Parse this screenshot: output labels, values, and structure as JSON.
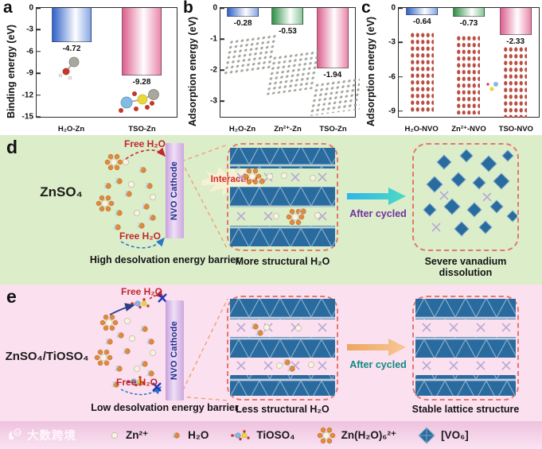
{
  "figure": {
    "panels": {
      "a": {
        "label": "a"
      },
      "b": {
        "label": "b"
      },
      "c": {
        "label": "c"
      },
      "d": {
        "label": "d",
        "electrolyte": "ZnSO₄",
        "free_h2o_top": "Free H₂O",
        "free_h2o_bottom": "Free H₂O",
        "cathode": "NVO Cathode",
        "interaction": "Interaction",
        "after_cycled": "After cycled",
        "caption_barrier": "High desolvation energy barrier",
        "caption_structural": "More structural H₂O",
        "caption_result": "Severe vanadium dissolution"
      },
      "e": {
        "label": "e",
        "electrolyte": "ZnSO₄/TiOSO₄",
        "free_h2o_top": "Free H₂O",
        "free_h2o_bottom": "Free H₂O",
        "cathode": "NVO Cathode",
        "after_cycled": "After cycled",
        "caption_barrier": "Low desolvation energy barrier",
        "caption_structural": "Less structural H₂O",
        "caption_result": "Stable lattice structure"
      }
    },
    "legend": {
      "watermark": "大数跨境",
      "items": [
        {
          "icon": "zn-ion-icon",
          "label": "Zn²⁺"
        },
        {
          "icon": "h2o-icon",
          "label": "H₂O"
        },
        {
          "icon": "tioso4-icon",
          "label": "TiOSO₄"
        },
        {
          "icon": "zn-h2o6-icon",
          "label": "Zn(H₂O)₆²⁺"
        },
        {
          "icon": "vo6-icon",
          "label": "[VO₆]"
        }
      ]
    },
    "colors": {
      "panel_d_bg": "#dcedca",
      "panel_e_bg": "#fbe0f0",
      "bar_blue": "#2f62c9",
      "bar_green": "#2f8f46",
      "bar_pink": "#dd5f8e",
      "octahedra_blue": "#2a6b9f",
      "cathode_purple": "#c79fdc",
      "free_h2o_red": "#c1272d",
      "dashed_box": "#e4776b",
      "after_cycled_d_arrow": "#2fb5ea",
      "after_cycled_e_arrow": "#eea660"
    }
  },
  "chart_data": [
    {
      "type": "bar",
      "title": "",
      "xlabel": "",
      "ylabel": "Binding energy (eV)",
      "categories": [
        "H₂O-Zn",
        "TSO-Zn"
      ],
      "values": [
        -4.72,
        -9.28
      ],
      "labels": [
        "-4.72",
        "-9.28"
      ],
      "yticks": [
        0,
        -3,
        -6,
        -9,
        -12,
        -15
      ],
      "ylim": [
        0,
        -15
      ],
      "bar_colors": [
        "blue",
        "pink"
      ],
      "grid": false,
      "legend_position": "none"
    },
    {
      "type": "bar",
      "title": "",
      "xlabel": "",
      "ylabel": "Adsorption energy (eV)",
      "categories": [
        "H₂O-Zn",
        "Zn²⁺-Zn",
        "TSO-Zn"
      ],
      "values": [
        -0.28,
        -0.53,
        -1.94
      ],
      "labels": [
        "-0.28",
        "-0.53",
        "-1.94"
      ],
      "yticks": [
        0,
        -1,
        -2,
        -3
      ],
      "ylim": [
        0,
        -3.5
      ],
      "bar_colors": [
        "blue",
        "green",
        "pink"
      ],
      "grid": false,
      "legend_position": "none"
    },
    {
      "type": "bar",
      "title": "",
      "xlabel": "",
      "ylabel": "Adsorption energy (eV)",
      "categories": [
        "H₂O-NVO",
        "Zn²⁺-NVO",
        "TSO-NVO"
      ],
      "values": [
        -0.64,
        -0.73,
        -2.33
      ],
      "labels": [
        "-0.64",
        "-0.73",
        "-2.33"
      ],
      "yticks": [
        0,
        -3,
        -6,
        -9
      ],
      "ylim": [
        0,
        -9.5
      ],
      "bar_colors": [
        "blue",
        "green",
        "pink"
      ],
      "grid": false,
      "legend_position": "none"
    }
  ]
}
